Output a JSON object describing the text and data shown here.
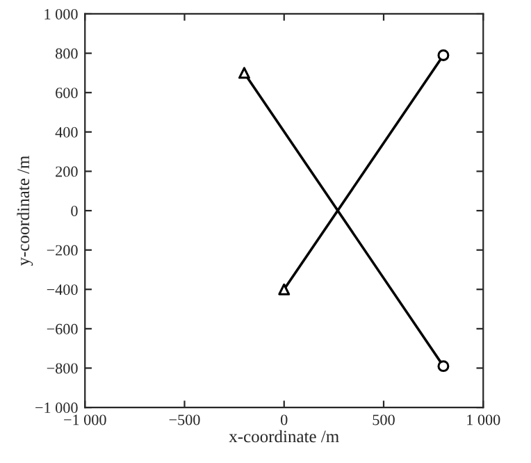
{
  "chart_data": {
    "type": "line",
    "xlabel": "x-coordinate /m",
    "ylabel": "y-coordinate /m",
    "xlim": [
      -1000,
      1000
    ],
    "ylim": [
      -1000,
      1000
    ],
    "xticks": [
      {
        "value": -1000,
        "label": "−1 000"
      },
      {
        "value": -500,
        "label": "−500"
      },
      0,
      500,
      {
        "value": 1000,
        "label": "1 000"
      }
    ],
    "yticks": [
      {
        "value": -1000,
        "label": "−1 000"
      },
      {
        "value": -800,
        "label": "−800"
      },
      {
        "value": -600,
        "label": "−600"
      },
      {
        "value": -400,
        "label": "−400"
      },
      {
        "value": -200,
        "label": "−200"
      },
      0,
      200,
      400,
      600,
      800,
      {
        "value": 1000,
        "label": "1 000"
      }
    ],
    "grid": false,
    "series": [
      {
        "color": "#000000",
        "x": [
          -200,
          800
        ],
        "values": [
          700,
          -790
        ],
        "marker": "none"
      },
      {
        "color": "#000000",
        "x": [
          0,
          800
        ],
        "values": [
          -400,
          790
        ],
        "marker": "none"
      },
      {
        "type": "scatter",
        "color": "#000000",
        "x": [
          -200,
          0
        ],
        "values": [
          700,
          -400
        ],
        "marker": "triangle"
      },
      {
        "type": "scatter",
        "color": "#000000",
        "x": [
          800,
          800
        ],
        "values": [
          -790,
          790
        ],
        "marker": "circle"
      }
    ]
  }
}
